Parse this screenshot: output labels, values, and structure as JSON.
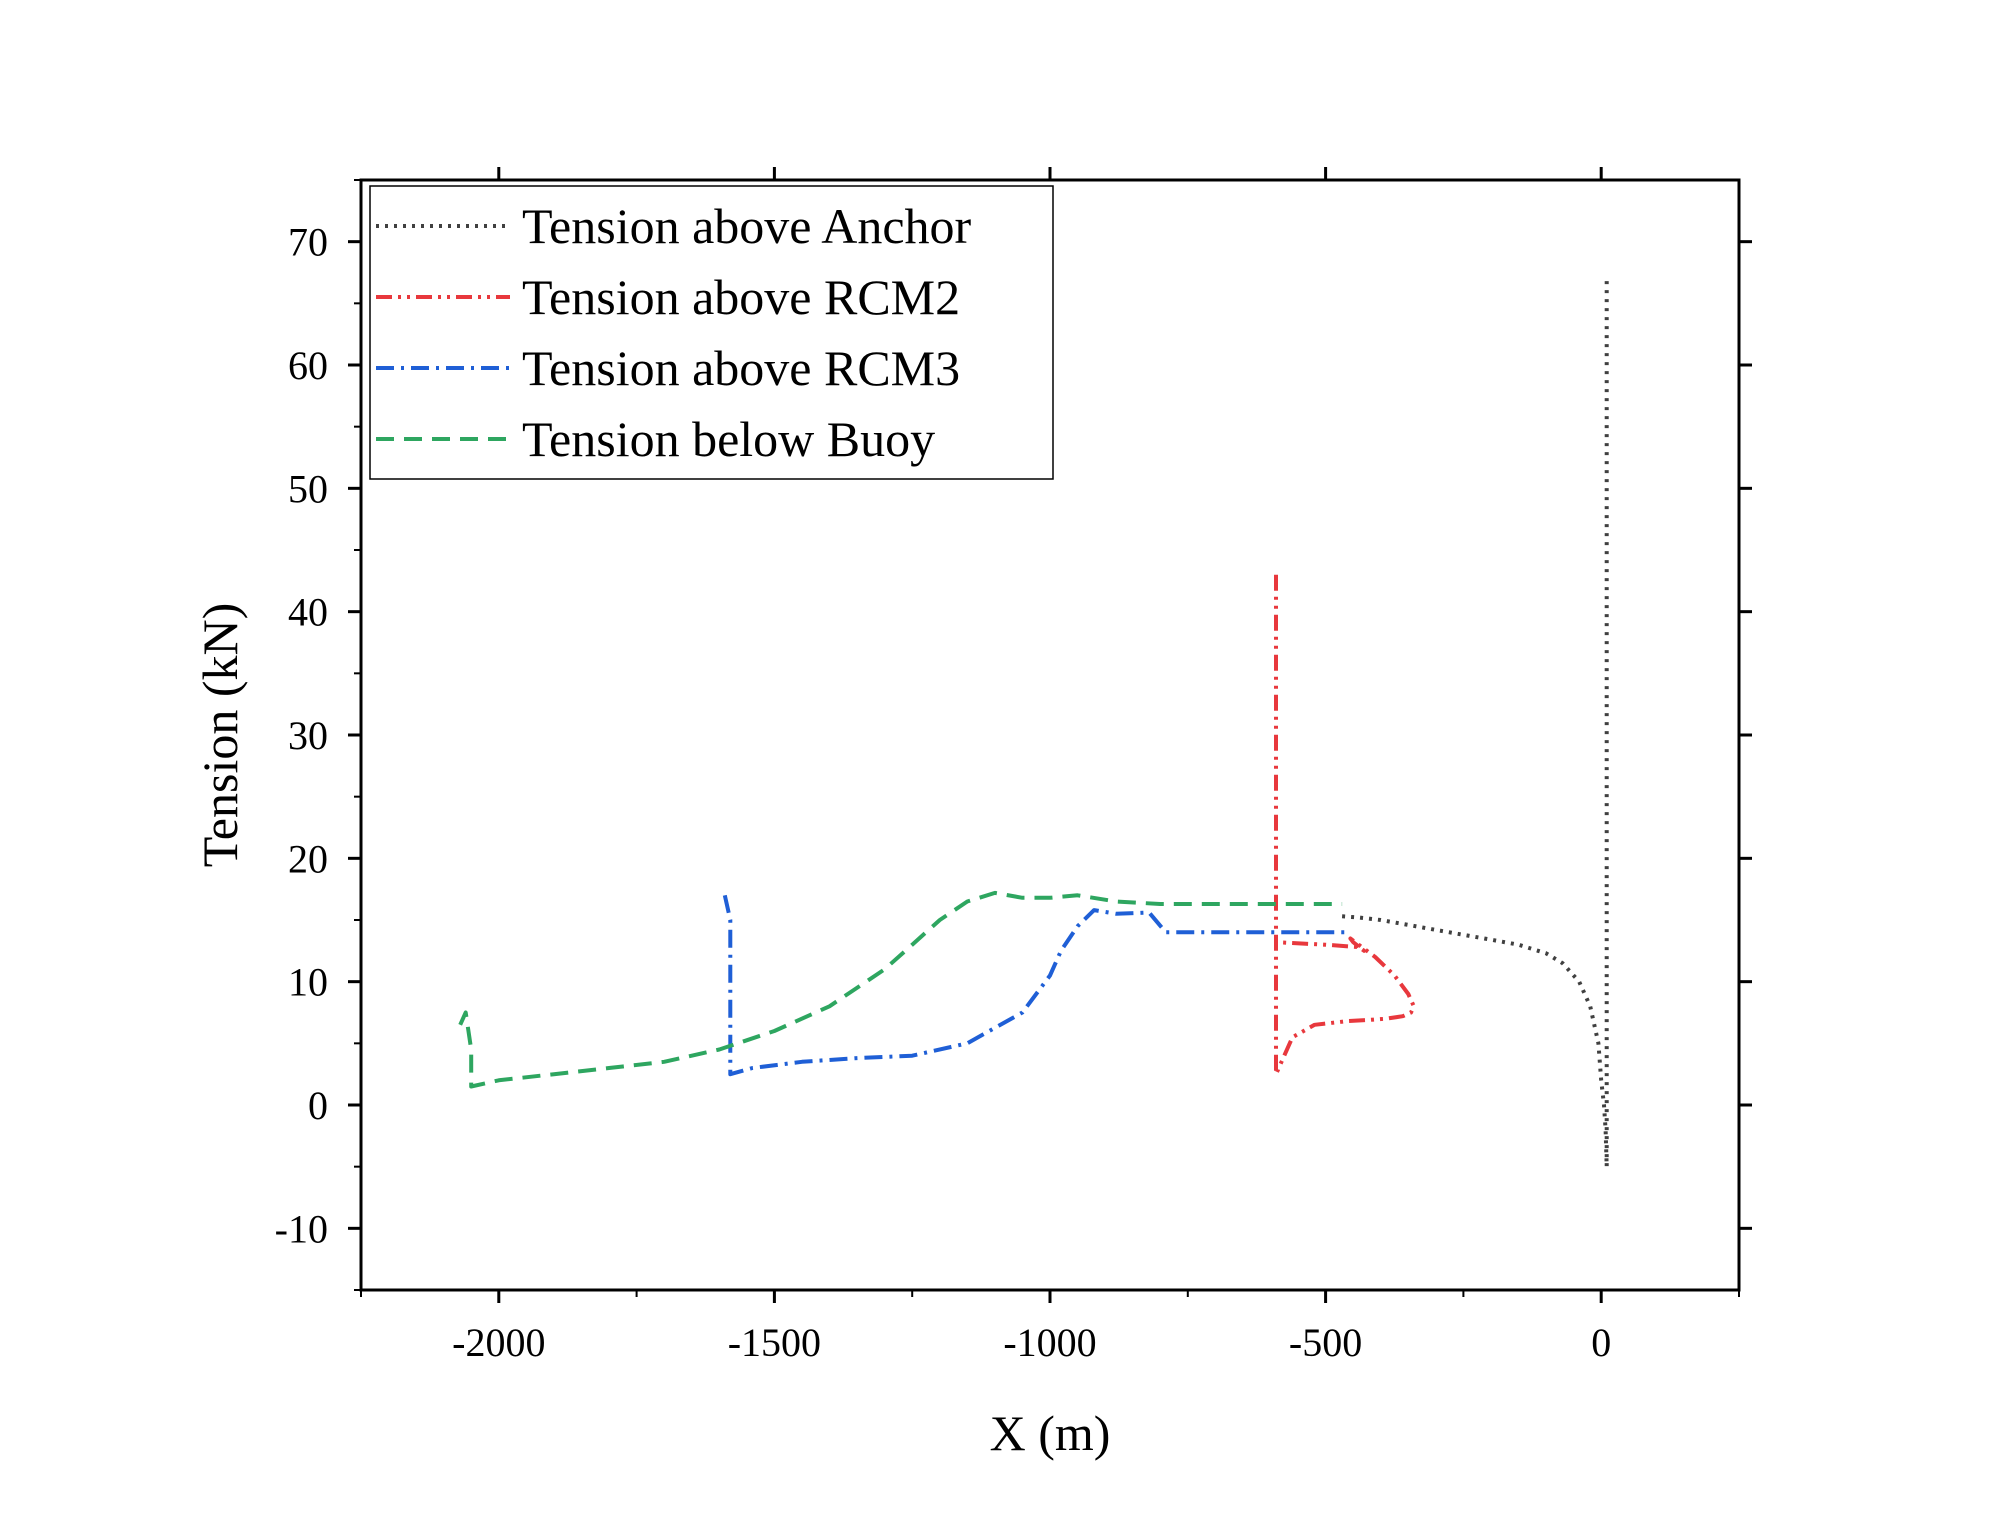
{
  "chart_data": {
    "type": "line",
    "title": "",
    "xlabel": "X (m)",
    "ylabel": "Tension (kN)",
    "xlim": [
      -2250,
      250
    ],
    "ylim": [
      -15,
      75
    ],
    "x_ticks": [
      -2000,
      -1500,
      -1000,
      -500,
      0
    ],
    "x_tick_labels": [
      "-2000",
      "-1500",
      "-1000",
      "-500",
      "0"
    ],
    "y_ticks": [
      -10,
      0,
      10,
      20,
      30,
      40,
      50,
      60,
      70
    ],
    "y_tick_labels": [
      "-10",
      "0",
      "10",
      "20",
      "30",
      "40",
      "50",
      "60",
      "70"
    ],
    "grid": false,
    "legend_position": "top-left",
    "series": [
      {
        "name": "Tension above Anchor",
        "color": "#404040",
        "dash": "dot",
        "x": [
          -470,
          -440,
          -400,
          -350,
          -300,
          -250,
          -200,
          -150,
          -100,
          -70,
          -40,
          -20,
          -5,
          0,
          5,
          8,
          10,
          10,
          10,
          10,
          10,
          10,
          10,
          10,
          10,
          10,
          10,
          10,
          10
        ],
        "y": [
          15.3,
          15.2,
          15.0,
          14.6,
          14.2,
          13.8,
          13.4,
          13.0,
          12.3,
          11.5,
          10.0,
          8.0,
          5.0,
          2.0,
          0.0,
          -2.0,
          -5.0,
          5.0,
          15.0,
          20.0,
          25.0,
          30.0,
          35.0,
          40.0,
          45.0,
          50.0,
          55.0,
          60.0,
          67.0
        ]
      },
      {
        "name": "Tension above RCM2",
        "color": "#e8383d",
        "dash": "dashdotdot",
        "x": [
          -590,
          -590,
          -590,
          -590,
          -590,
          -590,
          -590,
          -590,
          -590,
          -560,
          -520,
          -460,
          -420,
          -390,
          -360,
          -345,
          -340,
          -350,
          -375,
          -410,
          -440,
          -455,
          -450,
          -430,
          -440,
          -500,
          -590
        ],
        "y": [
          43.0,
          40.0,
          35.0,
          28.0,
          20.0,
          14.0,
          9.0,
          5.0,
          2.5,
          5.5,
          6.5,
          6.8,
          6.9,
          7.0,
          7.2,
          7.5,
          8.0,
          9.0,
          10.5,
          12.0,
          13.0,
          13.5,
          13.2,
          12.5,
          12.8,
          13.0,
          13.2
        ]
      },
      {
        "name": "Tension above RCM3",
        "color": "#1f5fd6",
        "dash": "dashdot",
        "x": [
          -1590,
          -1580,
          -1580,
          -1580,
          -1540,
          -1450,
          -1350,
          -1250,
          -1150,
          -1050,
          -1000,
          -980,
          -950,
          -920,
          -880,
          -820,
          -790,
          -700,
          -600,
          -530,
          -460
        ],
        "y": [
          17.0,
          15.0,
          10.0,
          2.5,
          3.0,
          3.5,
          3.8,
          4.0,
          5.0,
          7.5,
          10.5,
          12.5,
          14.5,
          15.8,
          15.5,
          15.6,
          14.0,
          14.0,
          14.0,
          14.0,
          14.0
        ]
      },
      {
        "name": "Tension below Buoy",
        "color": "#2ea660",
        "dash": "dash",
        "x": [
          -2070,
          -2060,
          -2050,
          -2050,
          -2000,
          -1900,
          -1800,
          -1700,
          -1600,
          -1500,
          -1400,
          -1300,
          -1250,
          -1200,
          -1150,
          -1100,
          -1050,
          -1000,
          -950,
          -880,
          -800,
          -700,
          -600,
          -530,
          -470
        ],
        "y": [
          6.5,
          7.5,
          4.5,
          1.5,
          2.0,
          2.5,
          3.0,
          3.5,
          4.5,
          6.0,
          8.0,
          11.0,
          13.0,
          15.0,
          16.5,
          17.2,
          16.8,
          16.8,
          17.0,
          16.5,
          16.3,
          16.3,
          16.3,
          16.3,
          16.3
        ]
      }
    ]
  }
}
